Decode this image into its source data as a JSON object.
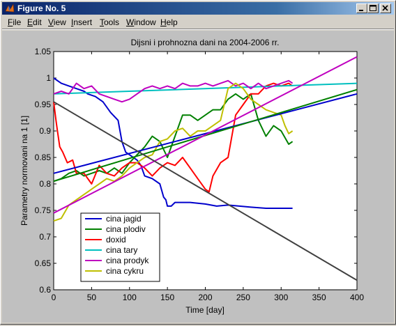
{
  "window": {
    "title": "Figure No. 5"
  },
  "menu": [
    {
      "label": "File",
      "underline": "F",
      "rest": "ile"
    },
    {
      "label": "Edit",
      "underline": "E",
      "rest": "dit"
    },
    {
      "label": "View",
      "underline": "V",
      "rest": "iew"
    },
    {
      "label": "Insert",
      "underline": "I",
      "rest": "nsert"
    },
    {
      "label": "Tools",
      "underline": "T",
      "rest": "ools"
    },
    {
      "label": "Window",
      "underline": "W",
      "rest": "indow"
    },
    {
      "label": "Help",
      "underline": "H",
      "rest": "elp"
    }
  ],
  "chart_data": {
    "type": "line",
    "title": "Dijsni i prohnozna dani na 2004-2006 rr.",
    "xlabel": "Time [day]",
    "ylabel": "Parametry normovani na 1 [1]",
    "xlim": [
      0,
      400
    ],
    "ylim": [
      0.6,
      1.05
    ],
    "xticks": [
      0,
      50,
      100,
      150,
      200,
      250,
      300,
      350,
      400
    ],
    "yticks": [
      0.6,
      0.65,
      0.7,
      0.75,
      0.8,
      0.85,
      0.9,
      0.95,
      1,
      1.05
    ],
    "ytick_labels": [
      "0.6",
      "0.65",
      "0.7",
      "0.75",
      "0.8",
      "0.85",
      "0.9",
      "0.95",
      "1",
      "1.05"
    ],
    "grid": false,
    "legend_position": "lower-left",
    "series": [
      {
        "name": "cina jagid",
        "color": "#0000cc",
        "x": [
          0,
          10,
          20,
          30,
          40,
          45,
          55,
          65,
          75,
          85,
          90,
          95,
          100,
          110,
          115,
          120,
          130,
          140,
          145,
          148,
          150,
          155,
          160,
          180,
          200,
          215,
          230,
          245,
          260,
          280,
          300,
          315
        ],
        "y": [
          1.0,
          0.99,
          0.985,
          0.98,
          0.975,
          0.97,
          0.965,
          0.955,
          0.935,
          0.92,
          0.88,
          0.86,
          0.855,
          0.845,
          0.835,
          0.815,
          0.81,
          0.8,
          0.775,
          0.77,
          0.758,
          0.758,
          0.765,
          0.765,
          0.762,
          0.758,
          0.76,
          0.758,
          0.756,
          0.754,
          0.754,
          0.754
        ]
      },
      {
        "name": "cina plodiv",
        "color": "#008000",
        "x": [
          0,
          10,
          20,
          30,
          40,
          50,
          60,
          70,
          80,
          90,
          100,
          110,
          120,
          130,
          140,
          150,
          160,
          170,
          180,
          190,
          200,
          210,
          220,
          230,
          240,
          250,
          260,
          270,
          280,
          290,
          300,
          310,
          315
        ],
        "y": [
          0.805,
          0.81,
          0.82,
          0.825,
          0.815,
          0.82,
          0.825,
          0.82,
          0.83,
          0.82,
          0.84,
          0.855,
          0.87,
          0.89,
          0.88,
          0.85,
          0.89,
          0.93,
          0.93,
          0.92,
          0.93,
          0.94,
          0.94,
          0.96,
          0.97,
          0.96,
          0.97,
          0.92,
          0.89,
          0.91,
          0.9,
          0.875,
          0.88
        ]
      },
      {
        "name": "doxid",
        "color": "#ff0000",
        "x": [
          0,
          3,
          5,
          8,
          12,
          18,
          25,
          30,
          40,
          50,
          60,
          70,
          80,
          90,
          100,
          110,
          120,
          130,
          140,
          150,
          160,
          170,
          180,
          190,
          200,
          205,
          210,
          220,
          230,
          240,
          250,
          260,
          270,
          280,
          290,
          300,
          310,
          315
        ],
        "y": [
          0.955,
          0.92,
          0.9,
          0.87,
          0.86,
          0.84,
          0.845,
          0.82,
          0.82,
          0.8,
          0.835,
          0.82,
          0.815,
          0.83,
          0.84,
          0.84,
          0.83,
          0.815,
          0.83,
          0.84,
          0.835,
          0.85,
          0.83,
          0.81,
          0.79,
          0.785,
          0.815,
          0.84,
          0.85,
          0.93,
          0.95,
          0.97,
          0.97,
          0.985,
          0.99,
          0.985,
          0.99,
          0.985
        ]
      },
      {
        "name": "cina tary",
        "color": "#00bfbf",
        "x": [
          0,
          400
        ],
        "y": [
          0.97,
          0.99
        ]
      },
      {
        "name": "cina prodyk",
        "color": "#bf00bf",
        "x": [
          0,
          10,
          20,
          30,
          40,
          50,
          60,
          70,
          80,
          90,
          100,
          110,
          120,
          130,
          140,
          150,
          160,
          170,
          180,
          190,
          200,
          210,
          220,
          230,
          240,
          250,
          260,
          270,
          280,
          290,
          300,
          310,
          315
        ],
        "y": [
          0.97,
          0.975,
          0.97,
          0.99,
          0.98,
          0.985,
          0.97,
          0.965,
          0.96,
          0.955,
          0.96,
          0.97,
          0.98,
          0.985,
          0.98,
          0.985,
          0.98,
          0.99,
          0.985,
          0.985,
          0.99,
          0.985,
          0.99,
          0.995,
          0.985,
          0.99,
          0.98,
          0.99,
          0.98,
          0.985,
          0.99,
          0.995,
          0.99
        ]
      },
      {
        "name": "cina cykru",
        "color": "#bfbf00",
        "x": [
          0,
          10,
          20,
          30,
          40,
          50,
          60,
          70,
          80,
          90,
          100,
          110,
          120,
          130,
          140,
          150,
          160,
          170,
          180,
          190,
          200,
          210,
          220,
          230,
          240,
          250,
          260,
          270,
          280,
          290,
          300,
          305,
          310,
          315
        ],
        "y": [
          0.73,
          0.735,
          0.76,
          0.77,
          0.78,
          0.79,
          0.8,
          0.81,
          0.805,
          0.815,
          0.83,
          0.84,
          0.85,
          0.855,
          0.88,
          0.885,
          0.9,
          0.905,
          0.89,
          0.9,
          0.9,
          0.91,
          0.92,
          0.98,
          0.99,
          0.98,
          0.96,
          0.95,
          0.94,
          0.935,
          0.93,
          0.91,
          0.895,
          0.9
        ]
      },
      {
        "name": "",
        "color": "#0000cc",
        "x": [
          0,
          400
        ],
        "y": [
          0.82,
          0.97
        ]
      },
      {
        "name": "",
        "color": "#008000",
        "x": [
          0,
          400
        ],
        "y": [
          0.805,
          0.978
        ]
      },
      {
        "name": "",
        "color": "#bf00bf",
        "x": [
          0,
          400
        ],
        "y": [
          0.745,
          1.04
        ]
      },
      {
        "name": "",
        "color": "#404040",
        "x": [
          0,
          400
        ],
        "y": [
          0.955,
          0.618
        ]
      }
    ]
  }
}
